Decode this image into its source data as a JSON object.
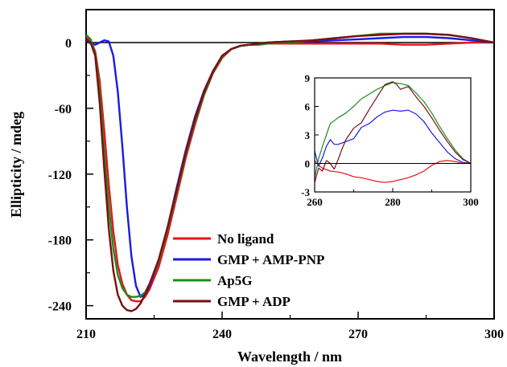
{
  "chart_data": {
    "type": "line",
    "xlabel": "Wavelength / nm",
    "ylabel": "Ellipticity / mdeg",
    "xlim": [
      210,
      300
    ],
    "ylim": [
      -252,
      30
    ],
    "xticks": [
      210,
      240,
      270,
      300
    ],
    "yticks": [
      0,
      -60,
      -120,
      -180,
      -240
    ],
    "zero_line": true,
    "legend_position": "bottom-center",
    "series": [
      {
        "name": "No ligand",
        "color": "#e8141b",
        "x": [
          210,
          211,
          212,
          213,
          214,
          215,
          216,
          217,
          218,
          219,
          220,
          221,
          222,
          223,
          224,
          226,
          228,
          230,
          232,
          234,
          236,
          238,
          240,
          242,
          244,
          246,
          248,
          250,
          255,
          260,
          265,
          270,
          275,
          280,
          285,
          290,
          295,
          300
        ],
        "y": [
          5,
          2,
          -8,
          -35,
          -80,
          -130,
          -172,
          -203,
          -220,
          -230,
          -235,
          -236,
          -236,
          -232,
          -225,
          -205,
          -175,
          -140,
          -105,
          -75,
          -48,
          -28,
          -14,
          -6,
          -3,
          -2,
          -2,
          -1,
          -1,
          -1,
          -1,
          -1,
          -1,
          -2,
          -2,
          -1,
          0,
          0
        ]
      },
      {
        "name": "GMP + AMP-PNP",
        "color": "#1a1ae6",
        "x": [
          210,
          211,
          212,
          213,
          214,
          215,
          216,
          217,
          218,
          219,
          220,
          221,
          222,
          223,
          224,
          226,
          228,
          230,
          232,
          234,
          236,
          238,
          240,
          242,
          244,
          246,
          248,
          250,
          255,
          260,
          265,
          270,
          275,
          280,
          285,
          290,
          295,
          300
        ],
        "y": [
          2,
          -1,
          -2,
          0,
          2,
          1,
          -12,
          -45,
          -95,
          -150,
          -195,
          -222,
          -232,
          -230,
          -222,
          -200,
          -168,
          -132,
          -98,
          -68,
          -44,
          -26,
          -13,
          -6,
          -3,
          -2,
          -1,
          0,
          1,
          1,
          2,
          3,
          4,
          5,
          5,
          4,
          2,
          0
        ]
      },
      {
        "name": "Ap5G",
        "color": "#1e8c1e",
        "x": [
          210,
          211,
          212,
          213,
          214,
          215,
          216,
          217,
          218,
          219,
          220,
          221,
          222,
          223,
          224,
          226,
          228,
          230,
          232,
          234,
          236,
          238,
          240,
          242,
          244,
          246,
          248,
          250,
          255,
          260,
          265,
          270,
          275,
          280,
          285,
          290,
          295,
          300
        ],
        "y": [
          7,
          3,
          -10,
          -45,
          -100,
          -150,
          -188,
          -212,
          -224,
          -230,
          -232,
          -232,
          -231,
          -228,
          -220,
          -200,
          -170,
          -136,
          -102,
          -72,
          -47,
          -27,
          -13,
          -6,
          -3,
          -2,
          -2,
          -1,
          0,
          2,
          4,
          6,
          8,
          8,
          8,
          7,
          4,
          0
        ]
      },
      {
        "name": "GMP + ADP",
        "color": "#7a1010",
        "x": [
          210,
          211,
          212,
          213,
          214,
          215,
          216,
          217,
          218,
          219,
          220,
          221,
          222,
          223,
          224,
          226,
          228,
          230,
          232,
          234,
          236,
          238,
          240,
          242,
          244,
          246,
          248,
          250,
          255,
          260,
          265,
          270,
          275,
          280,
          285,
          290,
          295,
          300
        ],
        "y": [
          3,
          0,
          -12,
          -55,
          -115,
          -170,
          -208,
          -230,
          -240,
          -244,
          -245,
          -243,
          -238,
          -230,
          -220,
          -198,
          -168,
          -134,
          -100,
          -70,
          -45,
          -26,
          -12,
          -6,
          -3,
          -2,
          -1,
          0,
          1,
          2,
          4,
          6,
          7,
          8,
          8,
          7,
          4,
          0
        ]
      }
    ],
    "inset": {
      "type": "line",
      "xlim": [
        260,
        300
      ],
      "ylim": [
        -3,
        9
      ],
      "xticks": [
        260,
        280,
        300
      ],
      "yticks": [
        9,
        6,
        3,
        0,
        -3
      ],
      "zero_line": true,
      "series": [
        {
          "name": "No ligand",
          "color": "#e8141b",
          "x": [
            260,
            261,
            262,
            264,
            266,
            268,
            270,
            272,
            274,
            276,
            278,
            280,
            282,
            284,
            286,
            288,
            290,
            292,
            294,
            296,
            298,
            300
          ],
          "y": [
            0.3,
            -0.2,
            -0.5,
            -0.8,
            -0.9,
            -1.1,
            -1.4,
            -1.5,
            -1.7,
            -1.9,
            -2.0,
            -1.9,
            -1.7,
            -1.5,
            -1.2,
            -0.8,
            -0.2,
            0.2,
            0.3,
            0.2,
            0.0,
            0.0
          ]
        },
        {
          "name": "GMP + AMP-PNP",
          "color": "#1a1ae6",
          "x": [
            260,
            261,
            262,
            263,
            264,
            265,
            266,
            268,
            270,
            272,
            274,
            276,
            278,
            280,
            282,
            284,
            286,
            288,
            290,
            292,
            294,
            296,
            298,
            300
          ],
          "y": [
            1.3,
            -0.3,
            0.6,
            1.8,
            2.5,
            2.0,
            2.0,
            2.3,
            2.6,
            3.8,
            4.2,
            4.9,
            5.4,
            5.6,
            5.5,
            5.6,
            5.2,
            4.4,
            3.2,
            2.2,
            1.2,
            0.5,
            0.1,
            0.0
          ]
        },
        {
          "name": "Ap5G",
          "color": "#1e8c1e",
          "x": [
            260,
            261,
            262,
            263,
            264,
            266,
            268,
            270,
            272,
            274,
            276,
            278,
            280,
            282,
            284,
            286,
            288,
            290,
            292,
            294,
            296,
            298,
            300
          ],
          "y": [
            -1.5,
            0.5,
            1.8,
            3.0,
            4.2,
            4.8,
            5.3,
            6.0,
            6.8,
            7.3,
            7.8,
            8.2,
            8.5,
            8.4,
            8.2,
            7.4,
            6.5,
            5.3,
            3.9,
            2.6,
            1.4,
            0.5,
            0.0
          ]
        },
        {
          "name": "GMP + ADP",
          "color": "#7a1010",
          "x": [
            260,
            261,
            262,
            263,
            264,
            265,
            266,
            267,
            268,
            270,
            272,
            274,
            276,
            278,
            280,
            281,
            282,
            284,
            286,
            288,
            290,
            292,
            294,
            296,
            298,
            300
          ],
          "y": [
            -2.0,
            -0.5,
            -0.8,
            0.3,
            0.0,
            -0.6,
            0.4,
            1.5,
            2.5,
            3.7,
            4.3,
            5.7,
            7.0,
            8.3,
            8.6,
            8.3,
            7.8,
            8.1,
            7.0,
            6.0,
            4.8,
            3.5,
            2.3,
            1.2,
            0.4,
            0.0
          ]
        }
      ]
    }
  }
}
